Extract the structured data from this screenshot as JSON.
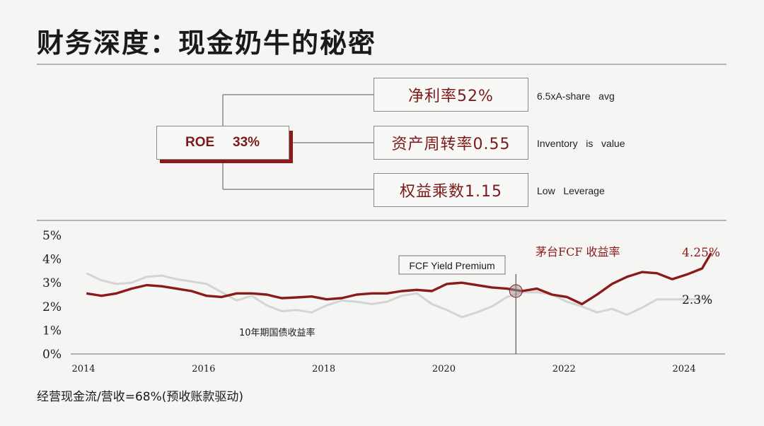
{
  "title": "财务深度：现金奶牛的秘密",
  "roe_box": {
    "label": "ROE",
    "value": "33%"
  },
  "branches": [
    {
      "label": "净利率52%",
      "note": "6.5xA-share   avg"
    },
    {
      "label": "资产周转率0.55",
      "note": "Inventory   is   value"
    },
    {
      "label": "权益乘数1.15",
      "note": "Low   Leverage"
    }
  ],
  "footer": "经营现金流/营收=68%(预收账款驱动)",
  "colors": {
    "accent": "#8b1a1a",
    "muted_line": "#d4d4d2",
    "text": "#1a1a1a"
  },
  "chart_data": {
    "type": "line",
    "x_ticks": [
      "2014",
      "2016",
      "2018",
      "2020",
      "2022",
      "2024"
    ],
    "y_ticks": [
      "0%",
      "1%",
      "2%",
      "3%",
      "4%",
      "5%"
    ],
    "xlim": [
      2014,
      2024.6
    ],
    "ylim": [
      0,
      5
    ],
    "series": [
      {
        "name": "茅台FCF 收益率",
        "end_label": "4.25%",
        "color": "#8b1a1a",
        "x": [
          2014.05,
          2014.3,
          2014.55,
          2014.8,
          2015.05,
          2015.3,
          2015.55,
          2015.8,
          2016.05,
          2016.3,
          2016.55,
          2016.8,
          2017.05,
          2017.3,
          2017.55,
          2017.8,
          2018.05,
          2018.3,
          2018.55,
          2018.8,
          2019.05,
          2019.3,
          2019.55,
          2019.8,
          2020.05,
          2020.3,
          2020.55,
          2020.8,
          2021.05,
          2021.3,
          2021.55,
          2021.8,
          2022.05,
          2022.3,
          2022.55,
          2022.8,
          2023.05,
          2023.3,
          2023.55,
          2023.8,
          2024.05,
          2024.3,
          2024.45
        ],
        "y": [
          2.55,
          2.45,
          2.55,
          2.75,
          2.9,
          2.85,
          2.75,
          2.65,
          2.45,
          2.4,
          2.55,
          2.55,
          2.5,
          2.35,
          2.38,
          2.42,
          2.3,
          2.35,
          2.5,
          2.55,
          2.55,
          2.65,
          2.7,
          2.65,
          2.95,
          3.0,
          2.9,
          2.8,
          2.75,
          2.65,
          2.75,
          2.5,
          2.4,
          2.1,
          2.5,
          2.95,
          3.25,
          3.45,
          3.4,
          3.15,
          3.35,
          3.6,
          4.25
        ]
      },
      {
        "name": "10年期国债收益率",
        "end_label": "2.3%",
        "color": "#d4d4d2",
        "x": [
          2014.05,
          2014.3,
          2014.55,
          2014.8,
          2015.05,
          2015.3,
          2015.55,
          2015.8,
          2016.05,
          2016.3,
          2016.55,
          2016.8,
          2017.05,
          2017.3,
          2017.55,
          2017.8,
          2018.05,
          2018.3,
          2018.55,
          2018.8,
          2019.05,
          2019.3,
          2019.55,
          2019.8,
          2020.05,
          2020.3,
          2020.55,
          2020.8,
          2021.05,
          2021.3,
          2021.55,
          2021.8,
          2022.05,
          2022.3,
          2022.55,
          2022.8,
          2023.05,
          2023.3,
          2023.55,
          2023.8,
          2024.05,
          2024.3,
          2024.45
        ],
        "y": [
          3.4,
          3.1,
          2.95,
          3.0,
          3.25,
          3.3,
          3.15,
          3.05,
          2.95,
          2.6,
          2.25,
          2.45,
          2.05,
          1.8,
          1.85,
          1.75,
          2.05,
          2.25,
          2.2,
          2.1,
          2.2,
          2.45,
          2.55,
          2.1,
          1.85,
          1.55,
          1.75,
          2.0,
          2.4,
          2.6,
          2.6,
          2.5,
          2.2,
          2.0,
          1.75,
          1.9,
          1.65,
          1.95,
          2.3,
          2.3,
          2.3,
          2.3,
          2.3
        ]
      }
    ],
    "annotation": {
      "label": "FCF  Yield  Premium",
      "x": 2021.2,
      "y": 2.65
    }
  }
}
